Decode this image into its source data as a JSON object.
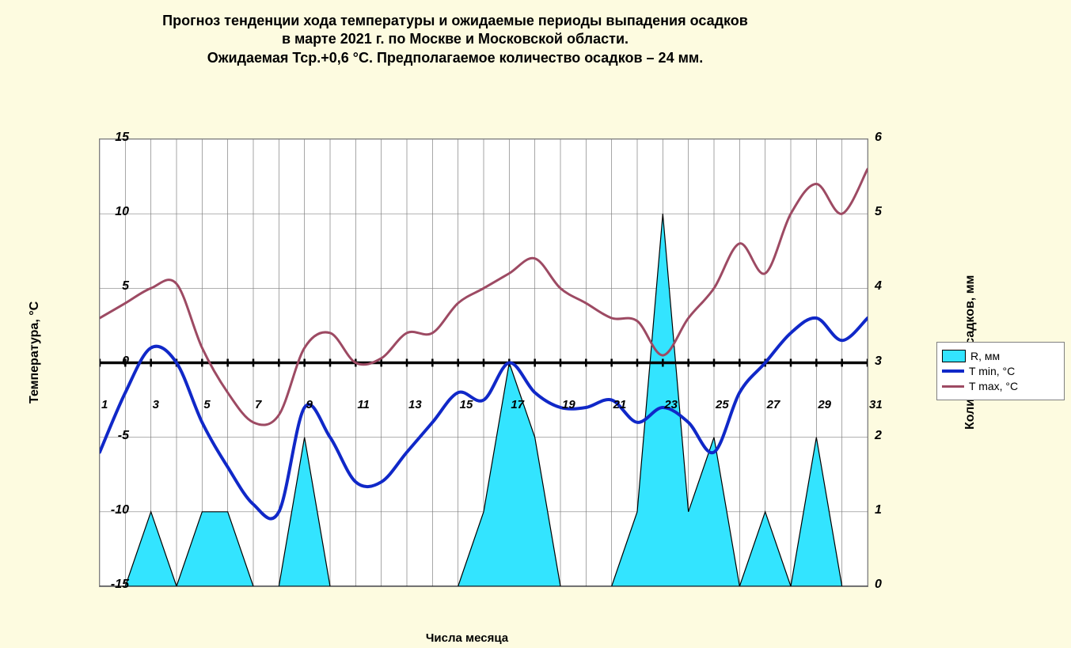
{
  "title_line1": "Прогноз тенденции хода температуры и ожидаемые периоды выпадения осадков",
  "title_line2": "в марте 2021 г. по Москве и Московской области.",
  "title_line3": "Ожидаемая Тср.+0,6 °С. Предполагаемое количество осадков – 24 мм.",
  "y_left_label": "Температура, °С",
  "y_right_label": "Количество осадков, мм",
  "x_label": "Числа месяца",
  "legend": {
    "r": "R, мм",
    "tmin": "T min,  °С",
    "tmax": "T max,  °С"
  },
  "chart": {
    "type": "combo-area-line-dual-axis",
    "background_color": "#fdfbe0",
    "plot_background": "#ffffff",
    "grid_color": "#808080",
    "axis_color": "#000000",
    "font_family": "Arial",
    "title_fontsize": 18,
    "tick_fontsize": 16,
    "tick_font_italic": true,
    "y_left": {
      "min": -15,
      "max": 15,
      "step": 5,
      "ticks": [
        -15,
        -10,
        -5,
        0,
        5,
        10,
        15
      ]
    },
    "y_right": {
      "min": 0,
      "max": 6,
      "step": 1,
      "ticks": [
        0,
        1,
        2,
        3,
        4,
        5,
        6
      ]
    },
    "x": {
      "min": 1,
      "max": 31,
      "ticks": [
        1,
        3,
        5,
        7,
        9,
        11,
        13,
        15,
        17,
        19,
        21,
        23,
        25,
        27,
        29,
        31
      ]
    },
    "days": [
      1,
      2,
      3,
      4,
      5,
      6,
      7,
      8,
      9,
      10,
      11,
      12,
      13,
      14,
      15,
      16,
      17,
      18,
      19,
      20,
      21,
      22,
      23,
      24,
      25,
      26,
      27,
      28,
      29,
      30,
      31
    ],
    "r_mm": [
      0,
      0,
      1,
      0,
      1,
      1,
      0,
      0,
      2,
      0,
      0,
      0,
      0,
      0,
      0,
      1,
      3,
      2,
      0,
      0,
      0,
      1,
      5,
      1,
      2,
      0,
      1,
      0,
      2,
      0,
      0
    ],
    "tmin_c": [
      -6,
      -2,
      1,
      0,
      -4,
      -7,
      -9.5,
      -10,
      -3,
      -5,
      -8,
      -8,
      -6,
      -4,
      -2,
      -2.5,
      0,
      -2,
      -3,
      -3,
      -2.5,
      -4,
      -3,
      -4,
      -6,
      -2,
      0,
      2,
      3,
      1.5,
      3
    ],
    "tmax_c": [
      3,
      4,
      5,
      5.3,
      1,
      -2,
      -4,
      -3.5,
      1,
      2,
      0,
      0.3,
      2,
      2,
      4,
      5,
      6,
      7,
      5,
      4,
      3,
      2.8,
      0.5,
      3,
      5,
      8,
      6,
      10,
      12,
      10,
      13
    ],
    "colors": {
      "r_fill": "#33e4ff",
      "r_stroke": "#000000",
      "tmin": "#1028c8",
      "tmax": "#9d4a63"
    },
    "line_width": {
      "tmin": 4,
      "tmax": 3,
      "zero_axis": 3.5
    }
  }
}
